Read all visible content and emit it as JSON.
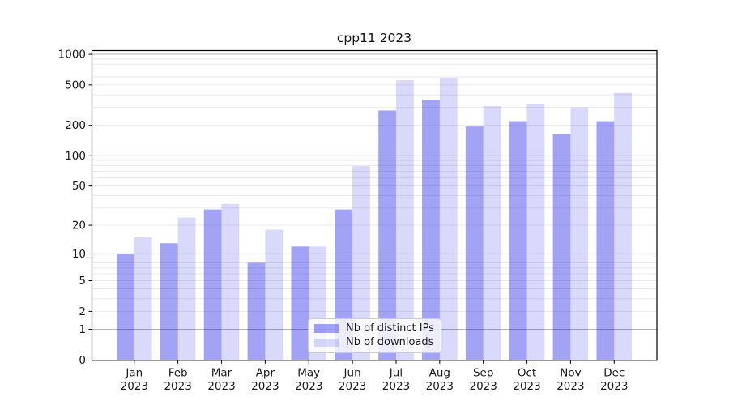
{
  "chart_data": {
    "type": "bar",
    "title": "cpp11 2023",
    "year": "2023",
    "categories": [
      "Jan",
      "Feb",
      "Mar",
      "Apr",
      "May",
      "Jun",
      "Jul",
      "Aug",
      "Sep",
      "Oct",
      "Nov",
      "Dec"
    ],
    "series": [
      {
        "name": "Nb of distinct IPs",
        "color": "rgba(0,0,230,0.36)",
        "values": [
          10,
          13,
          29,
          8,
          12,
          29,
          280,
          355,
          195,
          220,
          163,
          220
        ]
      },
      {
        "name": "Nb of downloads",
        "color": "rgba(0,0,230,0.15)",
        "values": [
          15,
          24,
          33,
          18,
          12,
          79,
          555,
          590,
          310,
          325,
          300,
          417
        ]
      }
    ],
    "y_scale": "log1p",
    "ylim": [
      0,
      1087
    ],
    "y_ticks": [
      0,
      1,
      2,
      5,
      10,
      20,
      50,
      100,
      200,
      500,
      1000
    ],
    "grid": {
      "on": true,
      "minor_color": "#e8e8e8",
      "major_color": "#b3b3b3",
      "major_at": [
        1,
        10,
        100,
        1000
      ]
    },
    "legend_position": "lower-center",
    "axis_color": "#000000",
    "text_color": "#1a1a1a"
  }
}
